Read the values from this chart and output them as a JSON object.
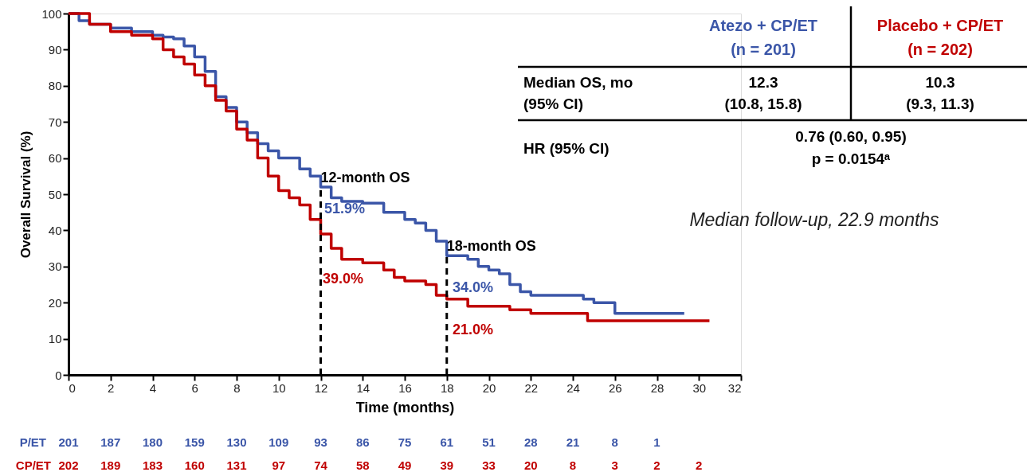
{
  "chart_data": {
    "type": "step",
    "xlabel": "Time (months)",
    "ylabel": "Overall Survival (%)",
    "xlim": [
      0,
      32
    ],
    "xticks": [
      0,
      2,
      4,
      6,
      8,
      10,
      12,
      14,
      16,
      18,
      20,
      22,
      24,
      26,
      28,
      30,
      32
    ],
    "ylim": [
      0,
      100
    ],
    "yticks": [
      0,
      10,
      20,
      30,
      40,
      50,
      60,
      70,
      80,
      90,
      100
    ],
    "grid": false,
    "series": [
      {
        "color": "#3b56a8",
        "x": [
          0,
          0.5,
          1,
          2,
          3,
          4,
          4.5,
          5,
          5.5,
          6,
          6.5,
          7,
          7.5,
          8,
          8.5,
          9,
          9.5,
          10,
          10.5,
          11,
          11.5,
          12,
          12.5,
          13,
          14,
          15,
          16,
          16.5,
          17,
          17.5,
          18,
          19,
          19.5,
          20,
          20.5,
          21,
          21.5,
          22,
          24,
          24.5,
          25,
          25.5,
          26,
          29.3
        ],
        "values": [
          100,
          98,
          97,
          96,
          95,
          94,
          93.5,
          93,
          91,
          88,
          84,
          77,
          74,
          70,
          67,
          64,
          62,
          60,
          60,
          57,
          55,
          52,
          49,
          48,
          47.5,
          45,
          43,
          42,
          40,
          37,
          33,
          32,
          30,
          29,
          28,
          25,
          23,
          22,
          22,
          21,
          20,
          20,
          17,
          17
        ]
      },
      {
        "color": "#c00000",
        "x": [
          0,
          1,
          2,
          3,
          4,
          4.5,
          5,
          5.5,
          6,
          6.5,
          7,
          7.5,
          8,
          8.5,
          9,
          9.5,
          10,
          10.5,
          11,
          11.5,
          12,
          12.5,
          13,
          14,
          15,
          15.5,
          16,
          17,
          17.5,
          18,
          19,
          20,
          21,
          22,
          24,
          24.7,
          30.5
        ],
        "values": [
          100,
          97,
          95,
          94,
          93,
          90,
          88,
          86,
          83,
          80,
          76,
          73,
          68,
          65,
          60,
          55,
          51,
          49,
          47,
          43,
          39,
          35,
          32,
          31,
          29,
          27,
          26,
          25,
          22,
          21,
          19,
          19,
          18,
          17,
          17,
          15,
          15
        ]
      }
    ],
    "ref_lines": [
      {
        "axis": "x",
        "value": 12,
        "label": "12-month OS",
        "line_style": "dashed",
        "color": "#000000"
      },
      {
        "axis": "x",
        "value": 18,
        "label": "18-month OS",
        "line_style": "dashed",
        "color": "#000000"
      }
    ],
    "annotations": [
      "Atezo + CP/ET",
      "(n = 201)",
      "Placebo + CP/ET",
      "(n = 202)",
      "Median OS, mo",
      "(95% CI)",
      "12.3",
      "(10.8, 15.8)",
      "10.3",
      "(9.3, 11.3)",
      "HR (95% CI)",
      "0.76 (0.60, 0.95)",
      "p = 0.0154ᵃ",
      "Median follow-up, 22.9 months",
      "P/ET",
      "201 187 180 159 130 109 93 86 75 61 51 28 21 8 1",
      "CP/ET",
      "202 189 183 160 131 97 74 58 49 39 33 20 8 3 2 2",
      "51.9%",
      "39.0%",
      "34.0%",
      "21.0%"
    ]
  }
}
